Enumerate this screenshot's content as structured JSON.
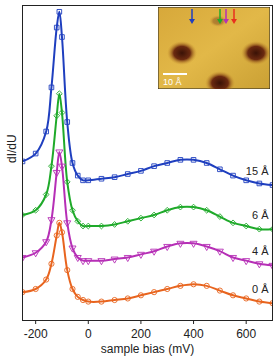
{
  "chart_data": {
    "type": "scatter",
    "x_label": "sample bias (mV)",
    "y_label": "dI/dU",
    "x": [
      -250,
      -200,
      -160,
      -140,
      -120,
      -110,
      -100,
      -80,
      -60,
      -40,
      -20,
      0,
      50,
      100,
      150,
      200,
      250,
      300,
      350,
      400,
      450,
      500,
      550,
      600,
      650,
      700
    ],
    "series": [
      {
        "name": "15 Å",
        "color": "#1f3fbf",
        "marker": "square",
        "values": [
          5.05,
          5.3,
          6.0,
          7.4,
          9.3,
          9.8,
          9.0,
          6.3,
          5.0,
          4.6,
          4.45,
          4.45,
          4.5,
          4.55,
          4.65,
          4.75,
          4.9,
          5.0,
          5.1,
          5.1,
          5.0,
          4.8,
          4.6,
          4.45,
          4.35,
          4.3
        ]
      },
      {
        "name": "6 Å",
        "color": "#1faa2a",
        "marker": "diamond",
        "values": [
          3.35,
          3.5,
          4.0,
          4.9,
          6.5,
          7.2,
          6.6,
          4.4,
          3.5,
          3.15,
          3.0,
          3.0,
          3.0,
          3.05,
          3.15,
          3.25,
          3.35,
          3.5,
          3.6,
          3.6,
          3.5,
          3.3,
          3.1,
          3.0,
          2.9,
          2.9
        ]
      },
      {
        "name": "4 Å",
        "color": "#b62fb6",
        "marker": "triangle-down",
        "values": [
          2.0,
          2.15,
          2.5,
          3.2,
          4.7,
          5.35,
          4.9,
          3.1,
          2.3,
          2.0,
          1.9,
          1.9,
          1.9,
          1.95,
          2.0,
          2.1,
          2.2,
          2.35,
          2.45,
          2.45,
          2.35,
          2.2,
          2.0,
          1.9,
          1.8,
          1.75
        ]
      },
      {
        "name": "0 Å",
        "color": "#e8641e",
        "marker": "circle",
        "values": [
          0.9,
          1.0,
          1.3,
          1.8,
          2.7,
          3.1,
          2.8,
          1.6,
          1.0,
          0.75,
          0.65,
          0.6,
          0.6,
          0.65,
          0.7,
          0.8,
          0.9,
          1.0,
          1.1,
          1.15,
          1.1,
          0.95,
          0.8,
          0.7,
          0.6,
          0.55
        ]
      }
    ],
    "xlim": [
      -250,
      700
    ],
    "xticks": [
      -200,
      0,
      200,
      400,
      600
    ],
    "ylim": [
      0,
      10
    ],
    "tick_labels": "x",
    "grid": false,
    "inset": {
      "scale_bar": "10 Å"
    }
  }
}
